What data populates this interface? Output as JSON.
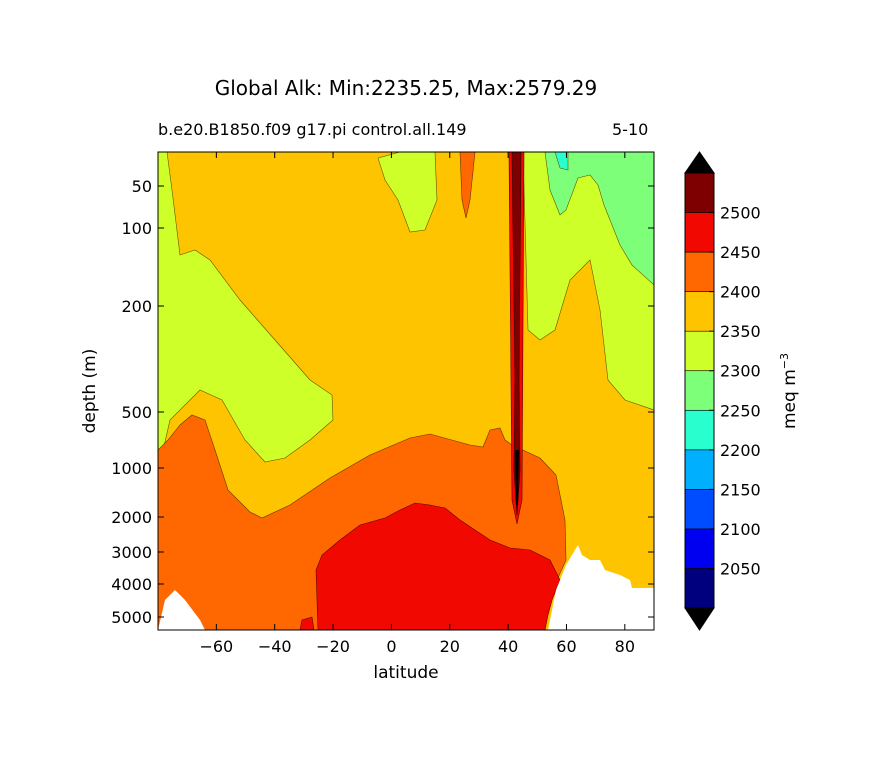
{
  "header": {
    "title": "Global Alk: Min:2235.25, Max:2579.29",
    "subtitle_left": "b.e20.B1850.f09 g17.pi control.all.149",
    "subtitle_right": "5-10"
  },
  "chart_data": {
    "type": "contour",
    "xlabel": "latitude",
    "ylabel": "depth (m)",
    "xlim": [
      -80,
      90
    ],
    "ylim": [
      5500,
      15
    ],
    "x_ticks": [
      -60,
      -40,
      -20,
      0,
      20,
      40,
      60,
      80
    ],
    "y_ticks": [
      50,
      100,
      200,
      500,
      1000,
      2000,
      3000,
      4000,
      5000
    ],
    "colorbar": {
      "label": "meq m",
      "label_exponent": "−3",
      "levels": [
        2050,
        2100,
        2150,
        2200,
        2250,
        2300,
        2350,
        2400,
        2450,
        2500
      ],
      "tick_labels": [
        "2050",
        "2100",
        "2150",
        "2200",
        "2250",
        "2300",
        "2350",
        "2400",
        "2450",
        "2500"
      ],
      "colors": [
        "#00007f",
        "#0000f1",
        "#004cff",
        "#00b0ff",
        "#29ffce",
        "#7dff7a",
        "#ceff29",
        "#ffc400",
        "#ff6800",
        "#f10800",
        "#7f0000"
      ],
      "extend": "both",
      "under_color": "#000000",
      "over_color": "#000000"
    },
    "regions": {
      "background": "2350-2400",
      "land": "#ffffff"
    }
  }
}
